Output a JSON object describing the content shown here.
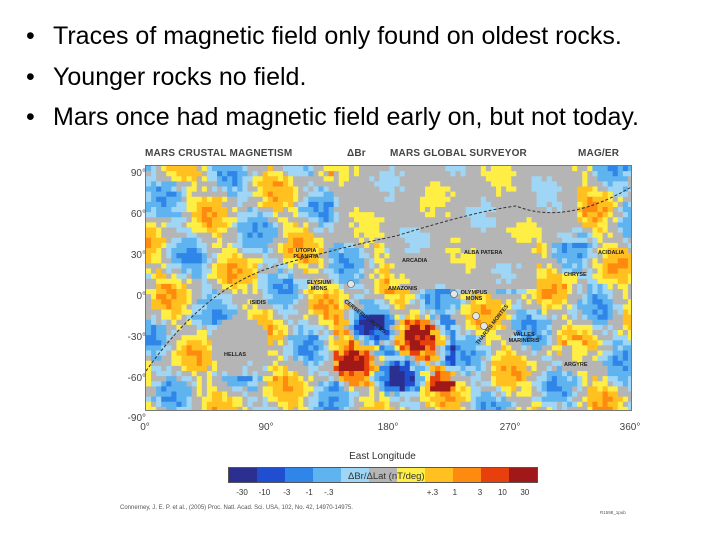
{
  "bullets": [
    "Traces of magnetic field only found on oldest rocks.",
    "Younger rocks no field.",
    "Mars once had magnetic field early on, but not today."
  ],
  "bullet_symbol": "•",
  "figure": {
    "title_left": "MARS CRUSTAL MAGNETISM",
    "title_symbol": "ΔBr",
    "title_center": "MARS GLOBAL SURVEYOR",
    "title_right": "MAG/ER",
    "map_labels": {
      "utopia": "UTOPIA PLANITIA",
      "arcadia": "ARCADIA",
      "alba": "ALBA PATERA",
      "acidalia": "ACIDALIA",
      "chryse": "CHRYSE",
      "elysium": "ELYSIUM MONS",
      "amazonis": "AMAZONIS",
      "olympus": "OLYMPUS MONS",
      "isidis": "ISIDIS",
      "cerberus": "CERBERUS RUPES",
      "tharsis": "THARSIS MONTES",
      "valles": "VALLES MARINERIS",
      "hellas": "HELLAS",
      "argyre": "ARGYRE"
    },
    "citation": "Connerney, J. E. P. et al., (2005) Proc. Natl. Acad. Sci. USA, 102, No. 42, 14970-14975.",
    "figure_code": "R1598_1pub"
  },
  "chart_data": {
    "type": "heatmap",
    "title": "MARS CRUSTAL MAGNETISM  ΔBr   MARS GLOBAL SURVEYOR   MAG/ER",
    "xlabel": "East Longitude",
    "ylabel": "",
    "x_ticks": [
      "0°",
      "90°",
      "180°",
      "270°",
      "360°"
    ],
    "y_ticks": [
      "90°",
      "60°",
      "30°",
      "0°",
      "-30°",
      "-60°",
      "-90°"
    ],
    "xlim": [
      0,
      360
    ],
    "ylim": [
      -90,
      90
    ],
    "colorbar": {
      "label": "ΔBr/ΔLat (nT/deg)",
      "ticks": [
        "-30",
        "-10",
        "-3",
        "-1",
        "-.3",
        "+.3",
        "1",
        "3",
        "10",
        "30"
      ],
      "colors": [
        "#2b2f8f",
        "#1f4fd0",
        "#2f86e8",
        "#5fb4f0",
        "#9fd6f5",
        "#b5b5b5",
        "#ffee44",
        "#ffc020",
        "#ff8a10",
        "#e8400c",
        "#a01818"
      ]
    }
  }
}
